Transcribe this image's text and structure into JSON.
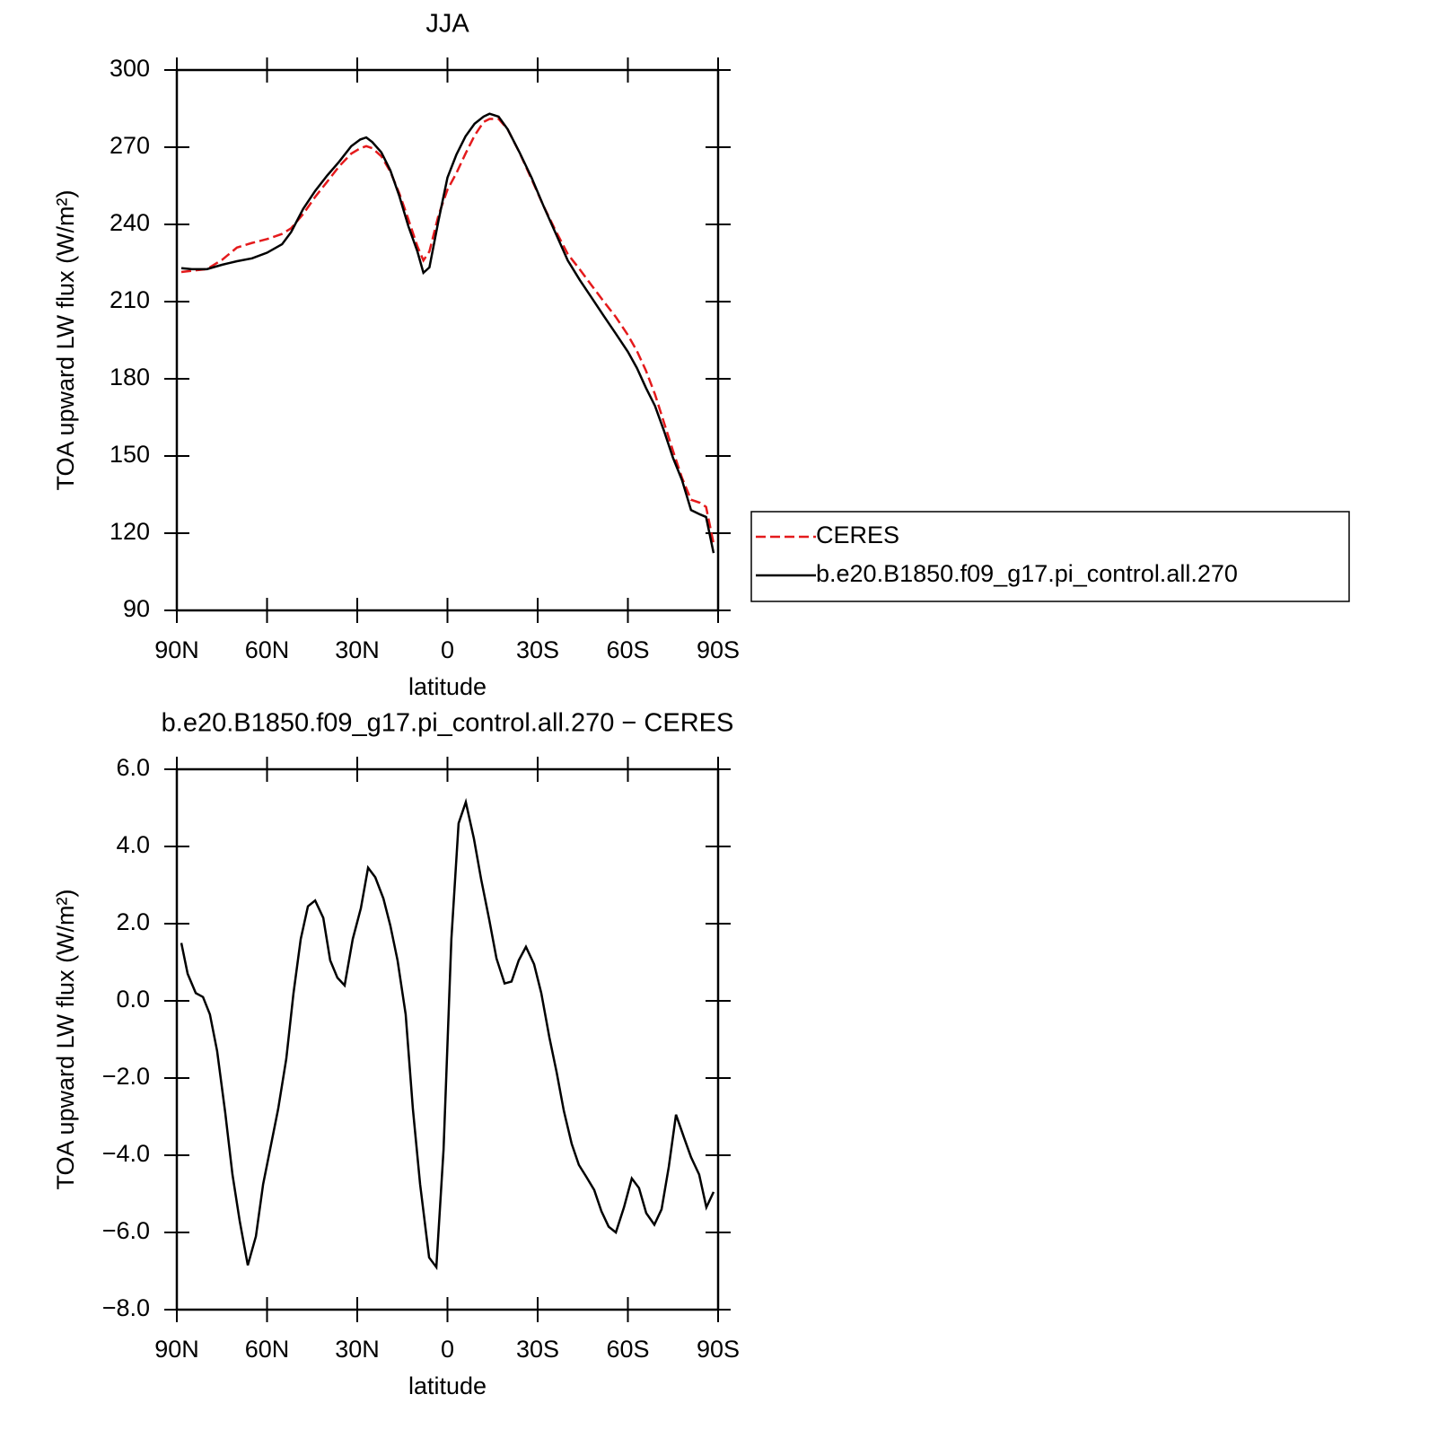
{
  "chart_data": [
    {
      "type": "line",
      "title": "JJA",
      "xlabel": "latitude",
      "ylabel": "TOA upward LW flux (W/m²)",
      "x": [
        88.5,
        85,
        80,
        75,
        70,
        65,
        60,
        55,
        52,
        48,
        44,
        40,
        36,
        32,
        29,
        27,
        25,
        22,
        19,
        16,
        13,
        10,
        8,
        6,
        3,
        0,
        -3,
        -6,
        -9,
        -12,
        -14,
        -17,
        -20,
        -24,
        -28,
        -32,
        -36,
        -40,
        -44,
        -48,
        -52,
        -56,
        -60,
        -63,
        -66,
        -69,
        -72,
        -75,
        -78,
        -81,
        -84,
        -86,
        -88.5
      ],
      "series": [
        {
          "name": "CERES",
          "color": "#e41a1c",
          "linestyle": "dashed",
          "values": [
            221.5,
            222,
            222.6,
            226.2,
            231,
            232.8,
            234.3,
            236.3,
            238.5,
            244,
            250.7,
            256.6,
            262.6,
            267.5,
            269.6,
            270.4,
            269.6,
            266.5,
            260.5,
            252,
            242,
            231.5,
            226,
            229.5,
            243.5,
            253.5,
            260,
            267.5,
            274.5,
            279.8,
            281,
            281,
            277,
            267.8,
            257.5,
            247,
            237.5,
            228.5,
            222.5,
            216.2,
            210,
            204,
            197,
            190.8,
            183.2,
            174,
            163,
            152,
            141.5,
            133,
            131.8,
            130.2,
            116
          ]
        },
        {
          "name": "b.e20.B1850.f09_g17.pi_control.all.270",
          "color": "#000000",
          "linestyle": "solid",
          "values": [
            223,
            222.6,
            222.6,
            224.3,
            225.7,
            226.8,
            229,
            232.3,
            237,
            246,
            253,
            259,
            264.4,
            270.4,
            273,
            273.8,
            272,
            268,
            261,
            251,
            239.3,
            229.5,
            221.2,
            223.3,
            241.4,
            258.2,
            267.2,
            274.2,
            279.1,
            281.9,
            283,
            281.9,
            277,
            267.9,
            258.1,
            247,
            236.5,
            226,
            218.4,
            211.4,
            204.4,
            197.5,
            190.5,
            184.2,
            176.5,
            169.5,
            159.8,
            149.3,
            140.6,
            129,
            127.3,
            126.3,
            112.3
          ]
        }
      ],
      "xlim": [
        90,
        -90
      ],
      "xticks": [
        {
          "value": 90,
          "label": "90N"
        },
        {
          "value": 60,
          "label": "60N"
        },
        {
          "value": 30,
          "label": "30N"
        },
        0,
        {
          "value": -30,
          "label": "30S"
        },
        {
          "value": -60,
          "label": "60S"
        },
        {
          "value": -90,
          "label": "90S"
        }
      ],
      "ylim": [
        90,
        300
      ],
      "yticks": [
        90,
        120,
        150,
        180,
        210,
        240,
        270,
        300
      ],
      "legend": "right"
    },
    {
      "type": "line",
      "title": "b.e20.B1850.f09_g17.pi_control.all.270 − CERES",
      "xlabel": "latitude",
      "ylabel": "TOA upward LW flux (W/m²)",
      "x": [
        88.5,
        86.4,
        83.7,
        81.3,
        79,
        76.6,
        73.9,
        71.5,
        69.1,
        66.4,
        63.7,
        61.3,
        56.3,
        53.6,
        51.2,
        48.8,
        46.4,
        44,
        41.3,
        39,
        36.6,
        34.2,
        31.5,
        28.8,
        26.4,
        24,
        21.3,
        19,
        16.6,
        13.9,
        11.5,
        9.1,
        6.1,
        3.7,
        1.3,
        -1.3,
        -3.7,
        -6.1,
        -8.8,
        -11.2,
        -13.9,
        -16.3,
        -19,
        -21.3,
        -23.7,
        -26.1,
        -28.8,
        -31.2,
        -33.9,
        -36.3,
        -38.7,
        -41.3,
        -43.7,
        -46.1,
        -48.8,
        -51.2,
        -53.6,
        -56,
        -58.7,
        -61.3,
        -63.7,
        -66.1,
        -68.8,
        -71.2,
        -73.6,
        -76,
        -78.7,
        -81,
        -83.7,
        -86.1,
        -88.5
      ],
      "values": [
        1.5,
        0.7,
        0.2,
        0.1,
        -0.35,
        -1.3,
        -2.9,
        -4.5,
        -5.7,
        -6.85,
        -6.1,
        -4.75,
        -2.8,
        -1.5,
        0.2,
        1.6,
        2.45,
        2.6,
        2.15,
        1.05,
        0.6,
        0.4,
        1.6,
        2.4,
        3.45,
        3.2,
        2.65,
        1.95,
        1.05,
        -0.35,
        -2.8,
        -4.75,
        -6.65,
        -6.9,
        -3.85,
        1.6,
        4.6,
        5.15,
        4.2,
        3.15,
        2.1,
        1.1,
        0.45,
        0.5,
        1.05,
        1.4,
        0.95,
        0.2,
        -0.95,
        -1.85,
        -2.85,
        -3.7,
        -4.25,
        -4.55,
        -4.9,
        -5.45,
        -5.85,
        -6,
        -5.35,
        -4.6,
        -4.85,
        -5.5,
        -5.8,
        -5.4,
        -4.3,
        -2.95,
        -3.55,
        -4.05,
        -4.5,
        -5.35,
        -4.95
      ],
      "color": "#000000",
      "xlim": [
        90,
        -90
      ],
      "xticks": [
        {
          "value": 90,
          "label": "90N"
        },
        {
          "value": 60,
          "label": "60N"
        },
        {
          "value": 30,
          "label": "30N"
        },
        0,
        {
          "value": -30,
          "label": "30S"
        },
        {
          "value": -60,
          "label": "60S"
        },
        {
          "value": -90,
          "label": "90S"
        }
      ],
      "ylim": [
        -8,
        6
      ],
      "yticks": [
        {
          "value": -8,
          "label": "−8.0"
        },
        {
          "value": -6,
          "label": "−6.0"
        },
        {
          "value": -4,
          "label": "−4.0"
        },
        {
          "value": -2,
          "label": "−2.0"
        },
        {
          "value": 0,
          "label": "0.0"
        },
        {
          "value": 2,
          "label": "2.0"
        },
        {
          "value": 4,
          "label": "4.0"
        },
        {
          "value": 6,
          "label": "6.0"
        }
      ]
    }
  ]
}
